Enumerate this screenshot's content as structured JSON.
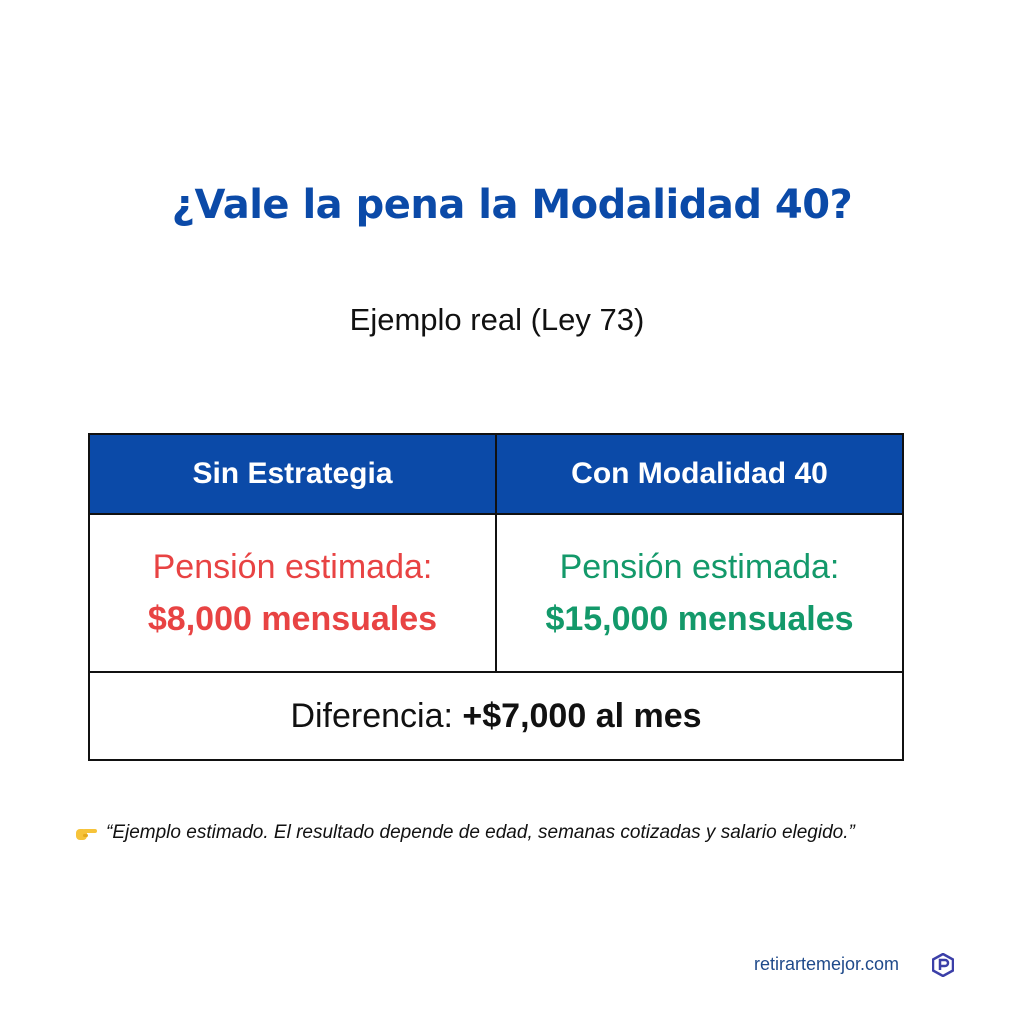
{
  "header": {
    "title": "¿Vale la pena la Modalidad 40?",
    "subtitle": "Ejemplo real (Ley 73)"
  },
  "table": {
    "headers": [
      "Sin Estrategia",
      "Con Modalidad 40"
    ],
    "rows": [
      [
        {
          "label": "Pensión estimada:",
          "amount": "$8,000 mensuales"
        },
        {
          "label": "Pensión estimada:",
          "amount": "$15,000 mensuales"
        }
      ]
    ],
    "footer": {
      "label": "Diferencia:",
      "amount": "+$7,000 al mes"
    }
  },
  "note": "“Ejemplo estimado. El resultado depende de edad, semanas cotizadas y salario elegido.”",
  "footer": {
    "site": "retirartemejor.com"
  }
}
